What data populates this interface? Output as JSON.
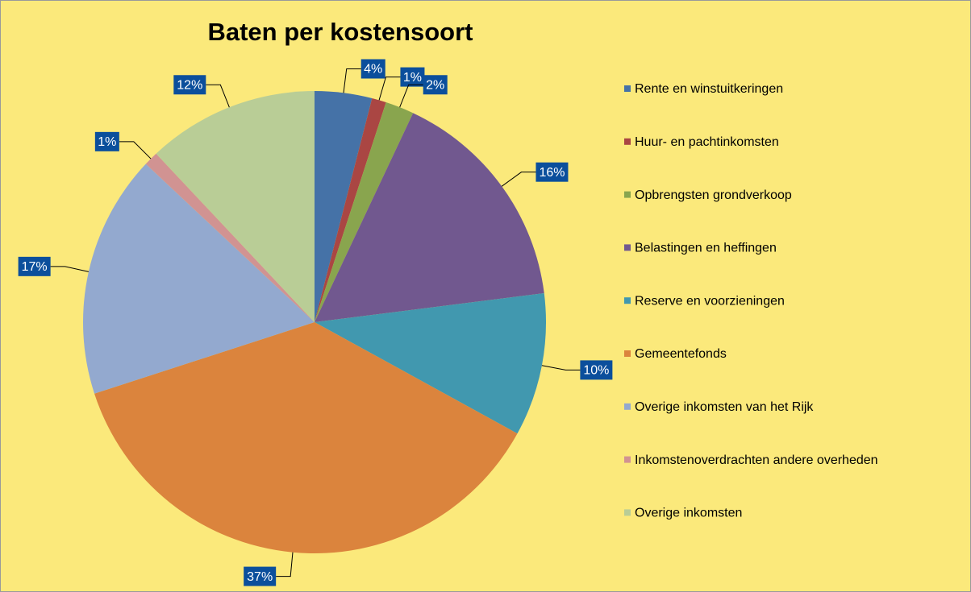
{
  "chart_data": {
    "type": "pie",
    "title": "Baten per kostensoort",
    "categories": [
      "Rente en winstuitkeringen",
      "Huur- en pachtinkomsten",
      "Opbrengsten grondverkoop",
      "Belastingen en heffingen",
      "Reserve en voorzieningen",
      "Gemeentefonds",
      "Overige inkomsten van het Rijk",
      "Inkomstenoverdrachten andere overheden",
      "Overige inkomsten"
    ],
    "values": [
      4,
      1,
      2,
      16,
      10,
      37,
      17,
      1,
      12
    ],
    "value_labels": [
      "4%",
      "1%",
      "2%",
      "16%",
      "10%",
      "37%",
      "17%",
      "1%",
      "12%"
    ],
    "colors": [
      "#4572a7",
      "#aa4643",
      "#89a54e",
      "#71588f",
      "#4198af",
      "#db843d",
      "#93a9cf",
      "#d19392",
      "#b9cd96"
    ],
    "legend": "right"
  }
}
